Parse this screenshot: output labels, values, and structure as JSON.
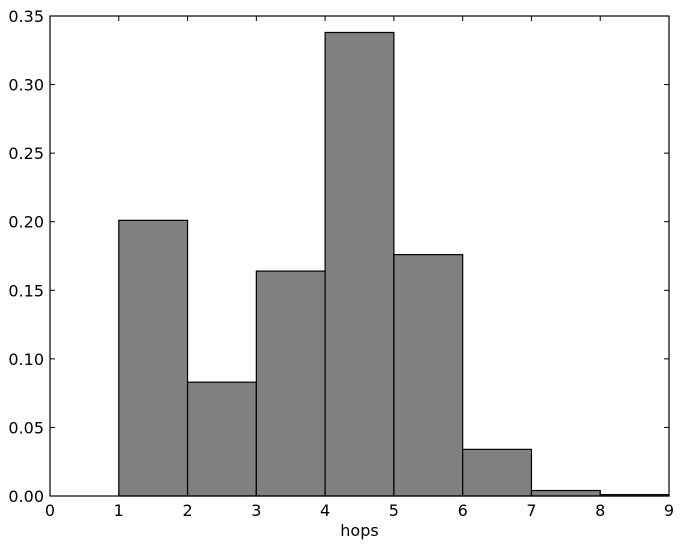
{
  "chart_data": {
    "type": "bar",
    "title": "",
    "xlabel": "hops",
    "ylabel": "",
    "bins": [
      [
        1,
        2
      ],
      [
        2,
        3
      ],
      [
        3,
        4
      ],
      [
        4,
        5
      ],
      [
        5,
        6
      ],
      [
        6,
        7
      ],
      [
        7,
        8
      ],
      [
        8,
        9
      ]
    ],
    "values": [
      0.201,
      0.083,
      0.164,
      0.338,
      0.176,
      0.034,
      0.004,
      0.001
    ],
    "xlim": [
      0,
      9
    ],
    "ylim": [
      0,
      0.35
    ],
    "xticks": [
      "0",
      "1",
      "2",
      "3",
      "4",
      "5",
      "6",
      "7",
      "8",
      "9"
    ],
    "yticks": [
      "0.00",
      "0.05",
      "0.10",
      "0.15",
      "0.20",
      "0.25",
      "0.30",
      "0.35"
    ],
    "grid": false,
    "bar_color": "#808080",
    "edge_color": "#000000"
  }
}
